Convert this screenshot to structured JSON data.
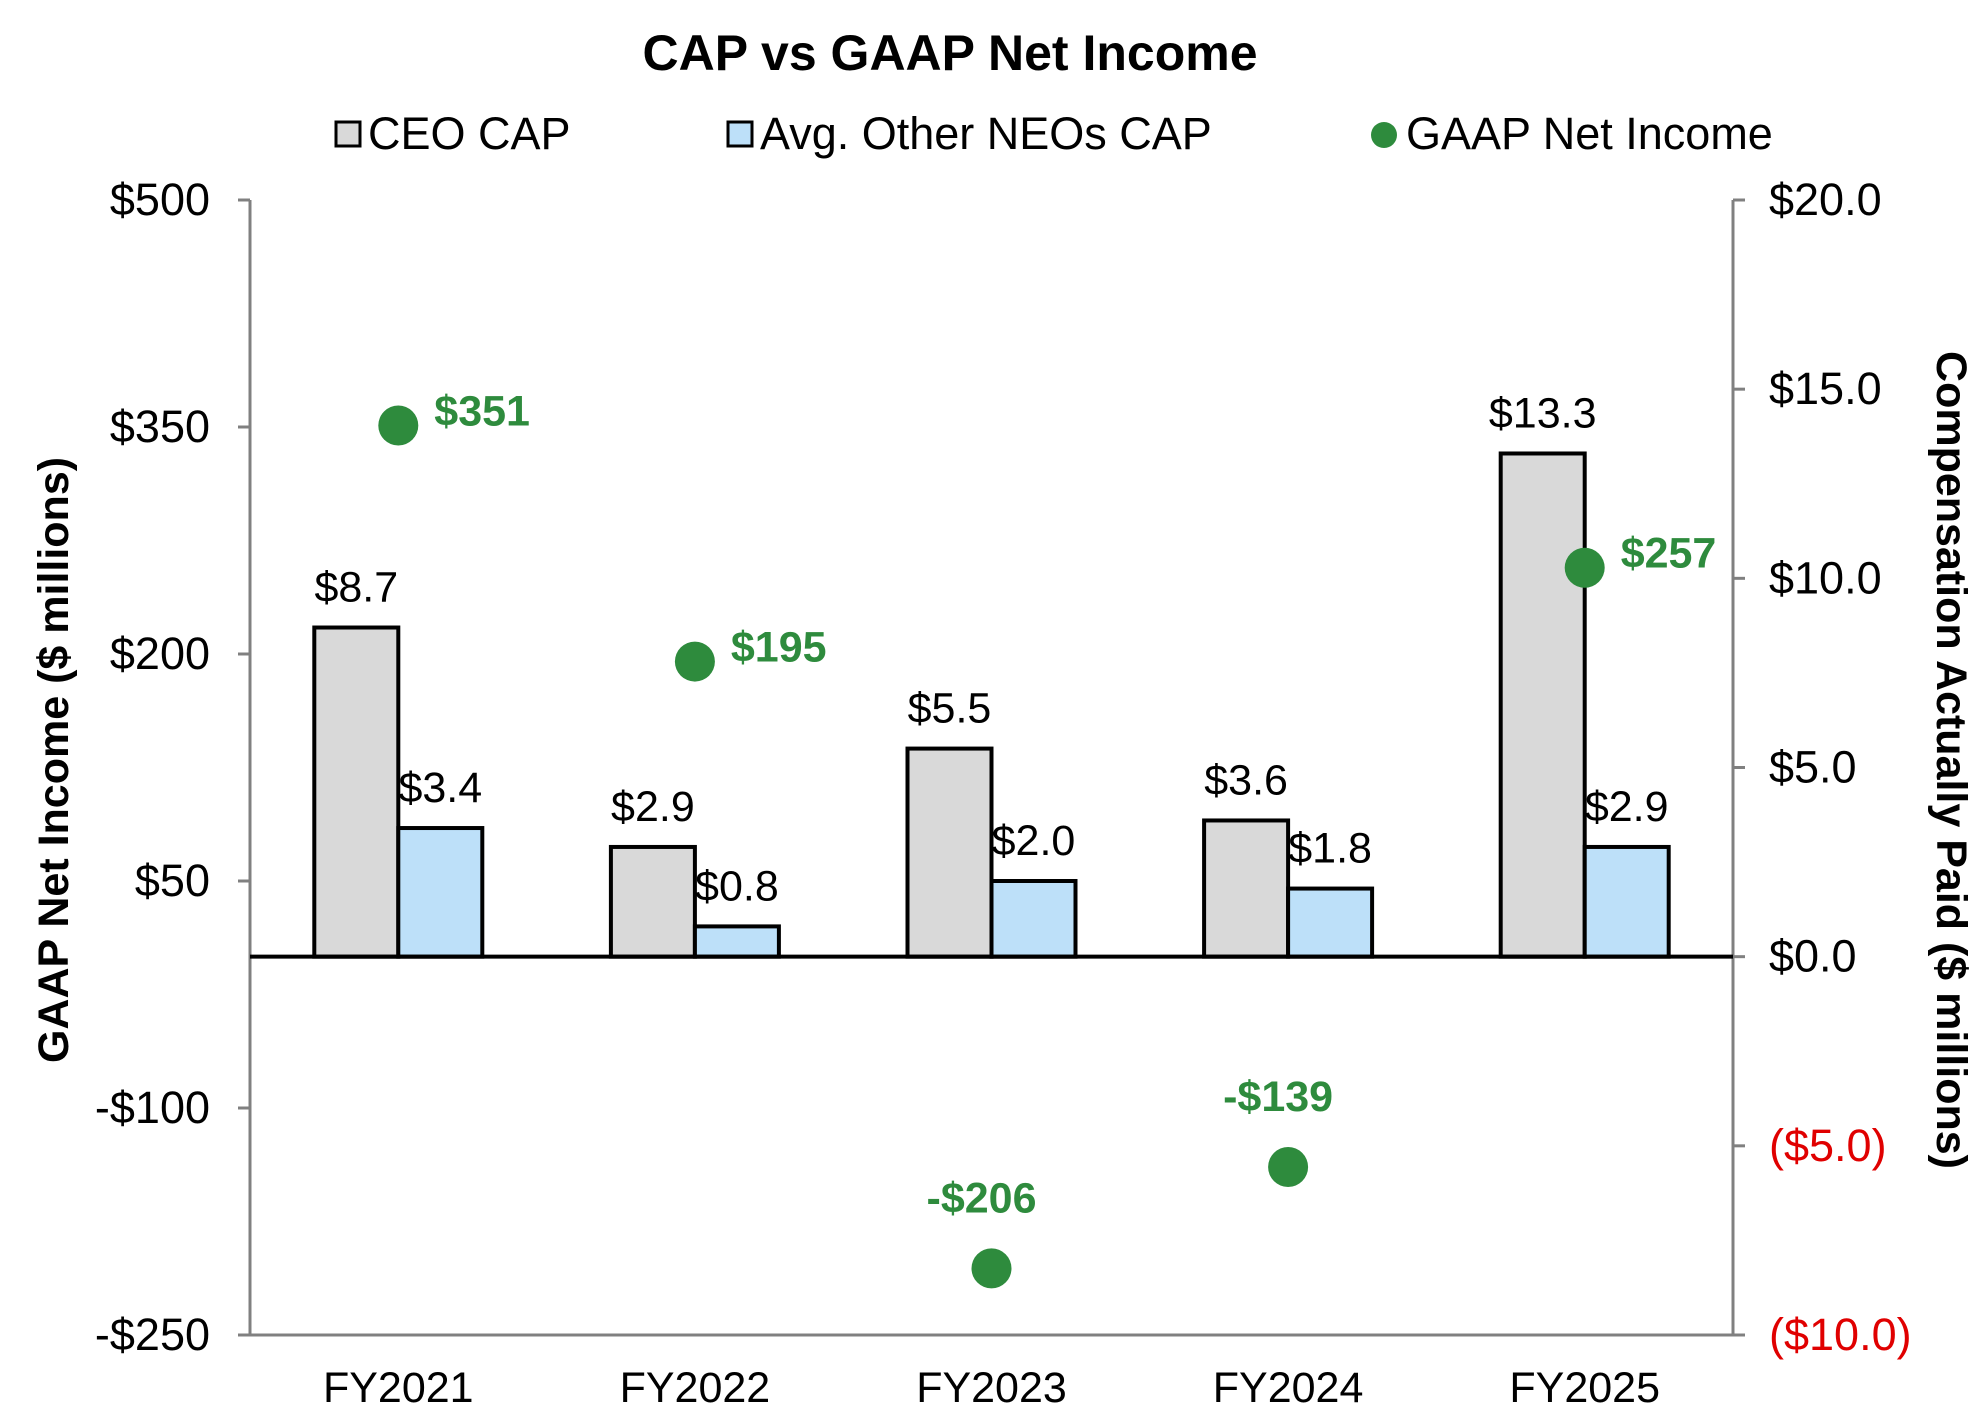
{
  "chart_data": {
    "type": "bar",
    "title": "CAP vs GAAP Net Income",
    "categories": [
      "FY2021",
      "FY2022",
      "FY2023",
      "FY2024",
      "FY2025"
    ],
    "series": [
      {
        "name": "CEO CAP",
        "axis": "right",
        "kind": "bar",
        "values": [
          8.7,
          2.9,
          5.5,
          3.6,
          13.3
        ],
        "labels": [
          "$8.7",
          "$2.9",
          "$5.5",
          "$3.6",
          "$13.3"
        ],
        "color": "#d9d9d9"
      },
      {
        "name": "Avg. Other NEOs CAP",
        "axis": "right",
        "kind": "bar",
        "values": [
          3.4,
          0.8,
          2.0,
          1.8,
          2.9
        ],
        "labels": [
          "$3.4",
          "$0.8",
          "$2.0",
          "$1.8",
          "$2.9"
        ],
        "color": "#bde0f9"
      },
      {
        "name": "GAAP Net Income",
        "axis": "left",
        "kind": "scatter",
        "values": [
          351,
          195,
          -206,
          -139,
          257
        ],
        "labels": [
          "$351",
          "$195",
          "-$206",
          "-$139",
          "$257"
        ],
        "color": "#2e8b3d"
      }
    ],
    "left_axis": {
      "label": "GAAP Net Income ($ millions)",
      "ylim": [
        -250,
        500
      ],
      "ticks": [
        500,
        350,
        200,
        50,
        -100,
        -250
      ],
      "tick_labels": [
        "$500",
        "$350",
        "$200",
        "$50",
        "-$100",
        "-$250"
      ]
    },
    "right_axis": {
      "label": "Compensation Actually Paid ($ millions)",
      "ylim": [
        -10,
        20
      ],
      "ticks": [
        20,
        15,
        10,
        5,
        0,
        -5,
        -10
      ],
      "tick_labels": [
        "$20.0",
        "$15.0",
        "$10.0",
        "$5.0",
        "$0.0",
        "($5.0)",
        "($10.0)"
      ],
      "negative_color": "#e00000"
    },
    "legend": {
      "position": "top",
      "entries": [
        "CEO CAP",
        "Avg. Other NEOs CAP",
        "GAAP Net Income"
      ]
    },
    "grid": false
  }
}
